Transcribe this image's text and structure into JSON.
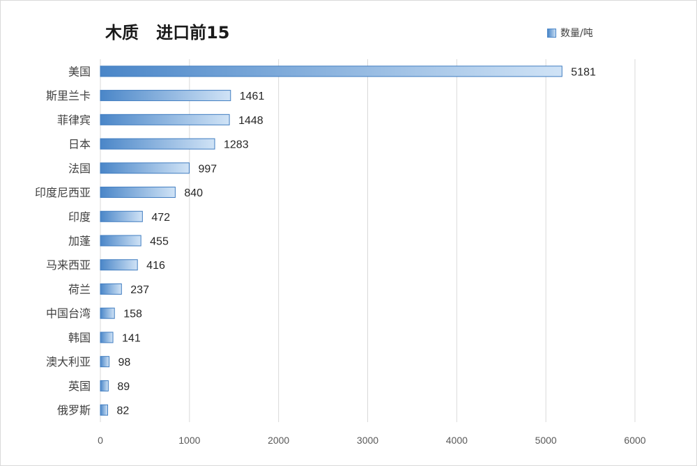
{
  "chart_data": {
    "type": "bar",
    "orientation": "horizontal",
    "title": "木质   进口前15",
    "legend_position": "top-right",
    "grid": true,
    "categories": [
      "美国",
      "斯里兰卡",
      "菲律宾",
      "日本",
      "法国",
      "印度尼西亚",
      "印度",
      "加蓬",
      "马来西亚",
      "荷兰",
      "中国台湾",
      "韩国",
      "澳大利亚",
      "英国",
      "俄罗斯"
    ],
    "series": [
      {
        "name": "数量/吨",
        "values": [
          5181,
          1461,
          1448,
          1283,
          997,
          840,
          472,
          455,
          416,
          237,
          158,
          141,
          98,
          89,
          82
        ]
      }
    ],
    "xlim": [
      0,
      6000
    ],
    "x_ticks": [
      0,
      1000,
      2000,
      3000,
      4000,
      5000,
      6000
    ],
    "colors": {
      "bar_dark": "#4a86c8",
      "bar_light": "#d0e3f6",
      "bar_border": "#3f7cc0",
      "grid": "#d9d9d9"
    }
  }
}
